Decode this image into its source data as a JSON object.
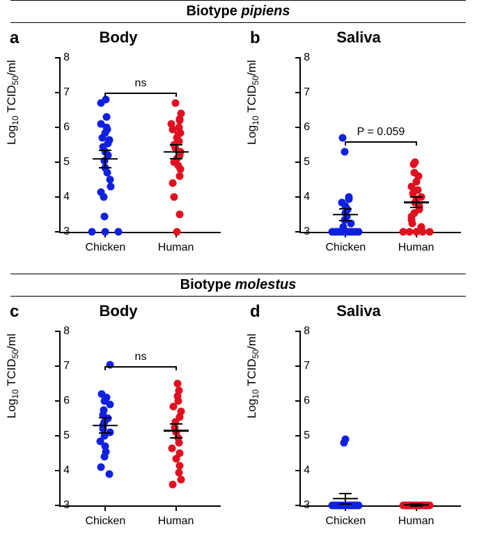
{
  "section1": {
    "prefix": "Biotype ",
    "name": "pipiens"
  },
  "section2": {
    "prefix": "Biotype ",
    "name": "molestus"
  },
  "axis": {
    "ylabel_html": "Log<sub>10</sub> TCID<sub>50</sub>/ml",
    "ymin": 3,
    "ymax": 8,
    "yticks": [
      3,
      4,
      5,
      6,
      7,
      8
    ],
    "xcats": [
      "Chicken",
      "Human"
    ],
    "xpos": [
      0.28,
      0.72
    ]
  },
  "colors": {
    "chicken": "#1020e0",
    "human": "#e01020",
    "axis": "#000000",
    "bg": "#ffffff"
  },
  "panels": {
    "a": {
      "letter": "a",
      "title": "Body",
      "sig": {
        "label": "ns",
        "y": 7.0,
        "drop": 0.12
      },
      "groups": [
        {
          "cat": 0,
          "mean": 5.1,
          "sem": 0.25,
          "pts": [
            6.8,
            6.7,
            6.3,
            6.1,
            6.0,
            5.95,
            5.85,
            5.7,
            5.65,
            5.55,
            5.45,
            5.3,
            5.2,
            5.05,
            4.85,
            4.7,
            4.5,
            4.3,
            4.15,
            4.0,
            3.45,
            3.0,
            3.0,
            3.0
          ]
        },
        {
          "cat": 1,
          "mean": 5.3,
          "sem": 0.2,
          "pts": [
            6.7,
            6.4,
            6.25,
            6.2,
            6.1,
            6.0,
            5.95,
            5.85,
            5.8,
            5.7,
            5.6,
            5.5,
            5.4,
            5.3,
            5.2,
            5.1,
            5.0,
            4.9,
            4.8,
            4.6,
            4.4,
            4.0,
            3.5,
            3.0
          ]
        }
      ]
    },
    "b": {
      "letter": "b",
      "title": "Saliva",
      "sig": {
        "label": "P = 0.059",
        "y": 5.6,
        "drop": 0.12
      },
      "groups": [
        {
          "cat": 0,
          "mean": 3.5,
          "sem": 0.17,
          "pts": [
            5.7,
            5.3,
            4.0,
            3.95,
            3.85,
            3.75,
            3.65,
            3.55,
            3.45,
            3.35,
            3.25,
            3.15,
            3.0,
            3.0,
            3.0,
            3.0,
            3.0,
            3.0,
            3.0,
            3.0,
            3.0,
            3.0,
            3.0,
            3.0
          ]
        },
        {
          "cat": 1,
          "mean": 3.85,
          "sem": 0.15,
          "pts": [
            5.0,
            4.95,
            4.7,
            4.6,
            4.45,
            4.3,
            4.2,
            4.1,
            4.0,
            3.95,
            3.85,
            3.75,
            3.65,
            3.55,
            3.45,
            3.35,
            3.25,
            3.15,
            3.0,
            3.0,
            3.0,
            3.0,
            3.0
          ]
        }
      ]
    },
    "c": {
      "letter": "c",
      "title": "Body",
      "sig": {
        "label": "ns",
        "y": 7.0,
        "drop": 0.12
      },
      "groups": [
        {
          "cat": 0,
          "mean": 5.3,
          "sem": 0.22,
          "pts": [
            7.05,
            6.2,
            6.1,
            6.0,
            5.9,
            5.75,
            5.6,
            5.5,
            5.4,
            5.3,
            5.2,
            5.1,
            5.0,
            4.85,
            4.7,
            4.55,
            4.4,
            4.1,
            3.9
          ]
        },
        {
          "cat": 1,
          "mean": 5.15,
          "sem": 0.2,
          "pts": [
            6.5,
            6.3,
            6.15,
            6.0,
            5.85,
            5.7,
            5.55,
            5.4,
            5.25,
            5.1,
            4.95,
            4.8,
            4.65,
            4.5,
            4.35,
            4.15,
            3.95,
            3.75,
            3.6
          ]
        }
      ]
    },
    "d": {
      "letter": "d",
      "title": "Saliva",
      "sig": null,
      "groups": [
        {
          "cat": 0,
          "mean": 3.2,
          "sem": 0.15,
          "pts": [
            4.9,
            4.8,
            3.0,
            3.0,
            3.0,
            3.0,
            3.0,
            3.0,
            3.0,
            3.0,
            3.0,
            3.0,
            3.0,
            3.0,
            3.0,
            3.0,
            3.0,
            3.0,
            3.0
          ]
        },
        {
          "cat": 1,
          "mean": 3.02,
          "sem": 0.03,
          "pts": [
            3.0,
            3.0,
            3.0,
            3.0,
            3.0,
            3.0,
            3.0,
            3.0,
            3.0,
            3.0,
            3.0,
            3.0,
            3.0,
            3.0,
            3.0,
            3.0,
            3.0,
            3.0,
            3.0
          ]
        }
      ]
    }
  }
}
